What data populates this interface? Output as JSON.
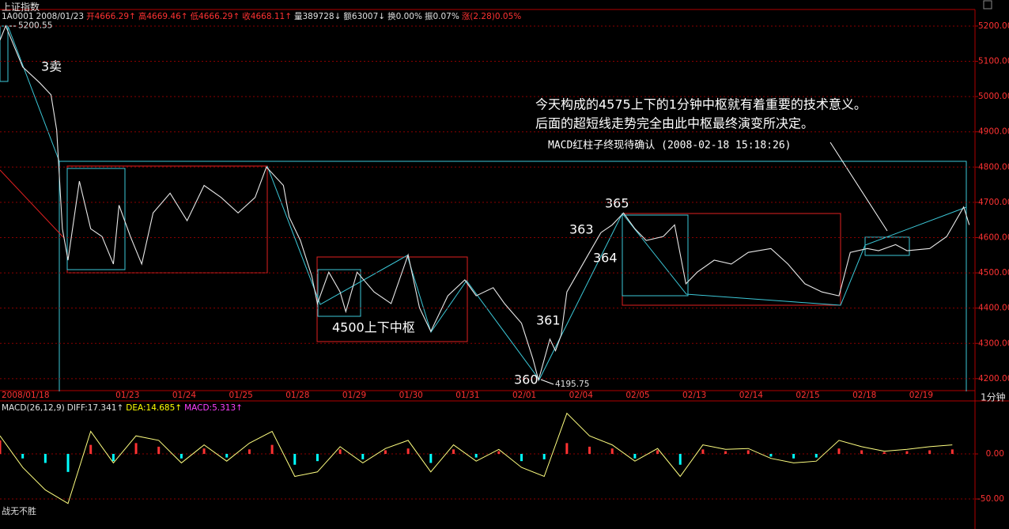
{
  "header": {
    "title": "上证指数",
    "items": [
      {
        "text": "1A0001",
        "color": "#e0e0e0"
      },
      {
        "text": "2008/01/23",
        "color": "#e0e0e0"
      },
      {
        "text": "开4666.29↑",
        "color": "#ff3232"
      },
      {
        "text": "高4669.46↑",
        "color": "#ff3232"
      },
      {
        "text": "低4666.29↑",
        "color": "#ff3232"
      },
      {
        "text": "收4668.11↑",
        "color": "#ff3232"
      },
      {
        "text": "量389728↓",
        "color": "#e0e0e0"
      },
      {
        "text": "额63007↓",
        "color": "#e0e0e0"
      },
      {
        "text": "换0.00%",
        "color": "#e0e0e0"
      },
      {
        "text": "振0.07%",
        "color": "#e0e0e0"
      },
      {
        "text": "涨(2.28)0.05%",
        "color": "#ff3232"
      }
    ]
  },
  "period_label": "1分钟",
  "footer_label": "战无不胜",
  "chart_data": [
    {
      "type": "line",
      "x": [
        0,
        1,
        4,
        7,
        9,
        10,
        11,
        12,
        14,
        16,
        18,
        20,
        21,
        23,
        25,
        27,
        30,
        33,
        36,
        39,
        42,
        45,
        47,
        50,
        51,
        53,
        55,
        56,
        58,
        60,
        61,
        63,
        66,
        69,
        72,
        74,
        76,
        79,
        82,
        84,
        87,
        89,
        92,
        94,
        95,
        97,
        98,
        99,
        100,
        102,
        104,
        106,
        108,
        110,
        112,
        114,
        117,
        119,
        121,
        123,
        126,
        129,
        132,
        136,
        139,
        142,
        145,
        148,
        150,
        153,
        155,
        158,
        160,
        164,
        167,
        170,
        171
      ],
      "values": [
        5160,
        5200.55,
        5084,
        5039,
        5005,
        4905,
        4625,
        4536,
        4760,
        4625,
        4603,
        4525,
        4692,
        4603,
        4525,
        4670,
        4726,
        4648,
        4748,
        4714,
        4670,
        4714,
        4800,
        4748,
        4659,
        4592,
        4491,
        4413,
        4502,
        4446,
        4390,
        4502,
        4446,
        4413,
        4551,
        4401,
        4334,
        4435,
        4480,
        4435,
        4458,
        4413,
        4357,
        4257,
        4195.75,
        4312,
        4279,
        4324,
        4446,
        4502,
        4558,
        4614,
        4636,
        4670,
        4625,
        4592,
        4603,
        4636,
        4469,
        4502,
        4536,
        4525,
        4558,
        4569,
        4525,
        4469,
        4446,
        4435,
        4558,
        4569,
        4563,
        4580,
        4563,
        4569,
        4603,
        4687,
        4636
      ],
      "color": "#e8e8e8",
      "xlim": [
        0,
        172
      ],
      "xticks": [
        {
          "value": 0,
          "label": "2008/01/18"
        },
        {
          "value": 22.5,
          "label": "01/23"
        },
        {
          "value": 32.5,
          "label": "01/24"
        },
        {
          "value": 42.5,
          "label": "01/25"
        },
        {
          "value": 52.5,
          "label": "01/28"
        },
        {
          "value": 62.5,
          "label": "01/29"
        },
        {
          "value": 72.5,
          "label": "01/30"
        },
        {
          "value": 82.5,
          "label": "01/31"
        },
        {
          "value": 92.5,
          "label": "02/01"
        },
        {
          "value": 102.5,
          "label": "02/04"
        },
        {
          "value": 112.5,
          "label": "02/05"
        },
        {
          "value": 122.5,
          "label": "02/13"
        },
        {
          "value": 132.5,
          "label": "02/14"
        },
        {
          "value": 142.5,
          "label": "02/15"
        },
        {
          "value": 152.5,
          "label": "02/18"
        },
        {
          "value": 162.5,
          "label": "02/19"
        }
      ],
      "ylim": [
        4166,
        5247
      ],
      "yticks": [
        {
          "value": 4200,
          "label": "4200.00"
        },
        {
          "value": 4300,
          "label": "4300.00"
        },
        {
          "value": 4400,
          "label": "4400.00"
        },
        {
          "value": 4500,
          "label": "4500.00"
        },
        {
          "value": 4600,
          "label": "4600.00"
        },
        {
          "value": 4700,
          "label": "4700.00"
        },
        {
          "value": 4800,
          "label": "4800.00"
        },
        {
          "value": 4900,
          "label": "4900.00"
        },
        {
          "value": 5000,
          "label": "5000.00"
        },
        {
          "value": 5100,
          "label": "5100.00"
        },
        {
          "value": 5200,
          "label": "5200.00"
        }
      ],
      "grid": true,
      "grid_color": "#8b0000",
      "annotations": [
        "3卖",
        "4500上下中枢",
        "360",
        "361",
        "363",
        "364",
        "365",
        "今天构成的4575上下的1分钟中枢就有着重要的技术意义。",
        "后面的超短线走势完全由此中枢最终演变所决定。",
        "MACD红柱子终现待确认  (2008-02-18 15:18:26)"
      ]
    },
    {
      "type": "macd",
      "legend": [
        {
          "text": "MACD(26,12,9)",
          "color": "#e0e0e0"
        },
        {
          "text": "DIFF:17.341↑",
          "color": "#e0e0e0"
        },
        {
          "text": "DEA:14.685↑",
          "color": "#ffff00"
        },
        {
          "text": "MACD:5.313↑",
          "color": "#ff40ff"
        }
      ],
      "x": [
        0,
        4,
        8,
        12,
        16,
        20,
        24,
        28,
        32,
        36,
        40,
        44,
        48,
        52,
        56,
        60,
        64,
        68,
        72,
        76,
        80,
        84,
        88,
        92,
        96,
        100,
        104,
        108,
        112,
        116,
        120,
        124,
        128,
        132,
        136,
        140,
        144,
        148,
        152,
        156,
        160,
        164,
        168
      ],
      "histogram": {
        "values": [
          15,
          -5,
          -10,
          -20,
          10,
          -8,
          12,
          8,
          -5,
          6,
          -4,
          5,
          10,
          -12,
          -8,
          5,
          -6,
          4,
          6,
          -10,
          5,
          -4,
          3,
          -8,
          -6,
          12,
          8,
          6,
          -5,
          4,
          -12,
          5,
          3,
          4,
          -3,
          -5,
          -4,
          6,
          4,
          2,
          3,
          4,
          5
        ],
        "up_color": "#ff3232",
        "down_color": "#00ffff"
      },
      "diff": {
        "values": [
          20,
          -15,
          -40,
          -55,
          25,
          -10,
          20,
          15,
          -10,
          10,
          -8,
          12,
          25,
          -25,
          -20,
          8,
          -10,
          6,
          15,
          -20,
          10,
          -8,
          5,
          -15,
          -25,
          45,
          20,
          10,
          -8,
          6,
          -25,
          10,
          5,
          6,
          -5,
          -10,
          -8,
          15,
          8,
          3,
          5,
          8,
          10
        ],
        "color": "#ffff80"
      },
      "xlim": [
        0,
        172
      ],
      "ylim": [
        -83.3,
        58.8
      ],
      "yticks": [
        {
          "value": 0,
          "label": "0.00"
        },
        {
          "value": -50,
          "label": "-50.00"
        }
      ],
      "grid": true,
      "grid_color": "#8b0000"
    }
  ]
}
